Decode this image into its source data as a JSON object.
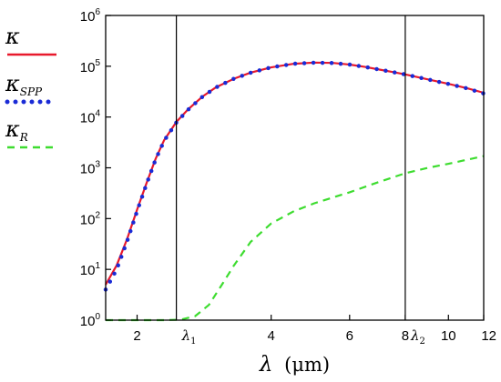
{
  "chart_data": {
    "type": "line",
    "xlabel_symbol": "λ",
    "xlabel_unit": "(μm)",
    "yscale": "log",
    "xscale": "log",
    "xlim": [
      1.7,
      12
    ],
    "ylim": [
      1,
      1000000
    ],
    "grid": false,
    "legend_position": "left-outside",
    "x_ticks": [
      {
        "value": 2,
        "label": "2"
      },
      {
        "value": 4,
        "label": "4"
      },
      {
        "value": 6,
        "label": "6"
      },
      {
        "value": 8,
        "label": "8"
      },
      {
        "value": 10,
        "label": "10"
      },
      {
        "value": 12,
        "label": "12"
      }
    ],
    "y_ticks": [
      {
        "value": 1,
        "base": "10",
        "exp": "0"
      },
      {
        "value": 10,
        "base": "10",
        "exp": "1"
      },
      {
        "value": 100,
        "base": "10",
        "exp": "2"
      },
      {
        "value": 1000,
        "base": "10",
        "exp": "3"
      },
      {
        "value": 10000,
        "base": "10",
        "exp": "4"
      },
      {
        "value": 100000,
        "base": "10",
        "exp": "5"
      },
      {
        "value": 1000000,
        "base": "10",
        "exp": "6"
      }
    ],
    "vlines": [
      {
        "x": 2.45,
        "label": "λ",
        "sub": "1"
      },
      {
        "x": 8.0,
        "label": "λ",
        "sub": "2"
      }
    ],
    "series": [
      {
        "name": "κ",
        "sub": "",
        "color": "#e8192c",
        "style": "solid",
        "x": [
          1.7,
          1.8,
          1.9,
          2.0,
          2.1,
          2.2,
          2.3,
          2.45,
          2.6,
          2.8,
          3.0,
          3.3,
          3.6,
          4.0,
          4.5,
          5.0,
          5.5,
          6.0,
          6.5,
          7.0,
          7.5,
          8.0,
          9.0,
          10.0,
          11.0,
          12.0
        ],
        "y": [
          5,
          12,
          40,
          150,
          500,
          1500,
          3500,
          8000,
          14000,
          25000,
          38000,
          57000,
          75000,
          95000,
          112000,
          118000,
          116000,
          108000,
          97000,
          86000,
          77000,
          69000,
          55000,
          45000,
          37000,
          30000
        ]
      },
      {
        "name": "κ",
        "sub": "SPP",
        "color": "#1a2bd6",
        "style": "dotted",
        "x": [
          1.7,
          1.8,
          1.9,
          2.0,
          2.1,
          2.2,
          2.3,
          2.45,
          2.6,
          2.8,
          3.0,
          3.3,
          3.6,
          4.0,
          4.5,
          5.0,
          5.5,
          6.0,
          6.5,
          7.0,
          7.5,
          8.0,
          9.0,
          10.0,
          11.0,
          12.0
        ],
        "y": [
          4,
          10,
          36,
          140,
          480,
          1450,
          3400,
          7800,
          13800,
          24800,
          37800,
          56800,
          74800,
          94800,
          111800,
          117800,
          115800,
          107800,
          96800,
          85800,
          76800,
          68800,
          54800,
          44800,
          36800,
          29000
        ]
      },
      {
        "name": "κ",
        "sub": "R",
        "color": "#3ddc2f",
        "style": "dashed",
        "x": [
          1.7,
          2.0,
          2.3,
          2.5,
          2.7,
          2.9,
          3.1,
          3.3,
          3.6,
          4.0,
          4.5,
          5.0,
          6.0,
          7.0,
          8.0,
          9.0,
          10.0,
          12.0
        ],
        "y": [
          1,
          1,
          1,
          1.02,
          1.2,
          2,
          5,
          12,
          35,
          80,
          140,
          200,
          330,
          530,
          780,
          1000,
          1200,
          1700
        ]
      }
    ]
  }
}
